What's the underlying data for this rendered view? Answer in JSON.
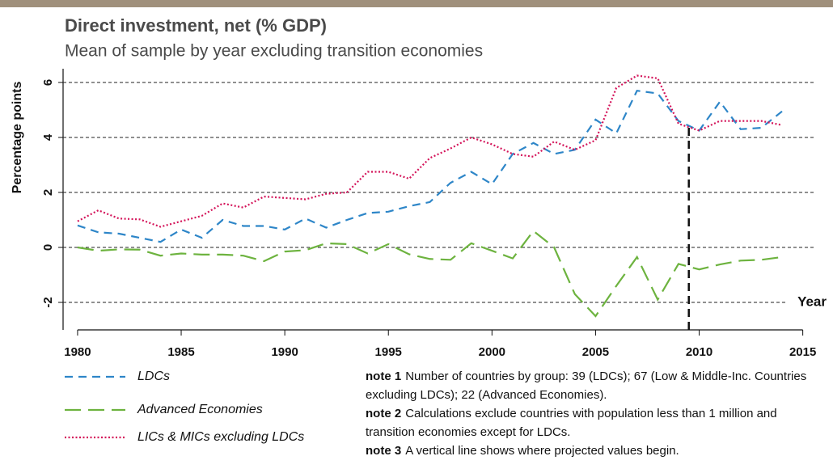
{
  "chart_data": {
    "type": "line",
    "title": "Direct investment, net (% GDP)",
    "subtitle": "Mean of sample by year excluding transition economies",
    "y_label": "Percentage points",
    "x_label": "Year",
    "x": [
      1980,
      1981,
      1982,
      1983,
      1984,
      1985,
      1986,
      1987,
      1988,
      1989,
      1990,
      1991,
      1992,
      1993,
      1994,
      1995,
      1996,
      1997,
      1998,
      1999,
      2000,
      2001,
      2002,
      2003,
      2004,
      2005,
      2006,
      2007,
      2008,
      2009,
      2010,
      2011,
      2012,
      2013,
      2014
    ],
    "series": [
      {
        "name": "LDCs",
        "color": "#2e86c8",
        "dash": "10,7",
        "values": [
          0.8,
          0.55,
          0.5,
          0.35,
          0.2,
          0.65,
          0.35,
          1.0,
          0.78,
          0.78,
          0.65,
          1.05,
          0.72,
          1.0,
          1.25,
          1.3,
          1.5,
          1.65,
          2.35,
          2.75,
          2.3,
          3.4,
          3.8,
          3.4,
          3.55,
          4.65,
          4.15,
          5.7,
          5.6,
          4.6,
          4.25,
          5.3,
          4.3,
          4.35,
          4.95
        ]
      },
      {
        "name": "Advanced Economies",
        "color": "#6db33f",
        "dash": "20,9",
        "values": [
          0.0,
          -0.12,
          -0.07,
          -0.08,
          -0.3,
          -0.22,
          -0.26,
          -0.26,
          -0.3,
          -0.5,
          -0.15,
          -0.1,
          0.15,
          0.12,
          -0.22,
          0.12,
          -0.25,
          -0.42,
          -0.45,
          0.15,
          -0.12,
          -0.4,
          0.6,
          0.0,
          -1.7,
          -2.5,
          -1.4,
          -0.35,
          -1.9,
          -0.6,
          -0.8,
          -0.62,
          -0.48,
          -0.45,
          -0.35
        ]
      },
      {
        "name": "LICs & MICs excluding LDCs",
        "color": "#d4145a",
        "dash": "2,2.5",
        "values": [
          0.95,
          1.35,
          1.05,
          1.02,
          0.75,
          0.95,
          1.15,
          1.6,
          1.45,
          1.85,
          1.8,
          1.75,
          1.95,
          2.0,
          2.75,
          2.75,
          2.5,
          3.25,
          3.6,
          4.0,
          3.75,
          3.4,
          3.3,
          3.85,
          3.55,
          3.9,
          5.8,
          6.25,
          6.15,
          4.5,
          4.25,
          4.6,
          4.6,
          4.6,
          4.45
        ]
      }
    ],
    "xlim": [
      1979.3,
      2015.6
    ],
    "ylim": [
      -3,
      6.5
    ],
    "xticks": [
      1980,
      1985,
      1990,
      1995,
      2000,
      2005,
      2010,
      2015
    ],
    "yticks": [
      -2,
      0,
      2,
      4,
      6
    ],
    "grid": true,
    "projection_start": 2009.5,
    "notes": [
      {
        "label": "note 1",
        "text": "Number of countries by group: 39 (LDCs); 67 (Low & Middle-Inc. Countries excluding LDCs); 22 (Advanced Economies)."
      },
      {
        "label": "note 2",
        "text": "Calculations exclude countries with population less than 1 million and transition economies except for LDCs."
      },
      {
        "label": "note 3",
        "text": "A vertical line shows where projected values begin."
      }
    ]
  }
}
